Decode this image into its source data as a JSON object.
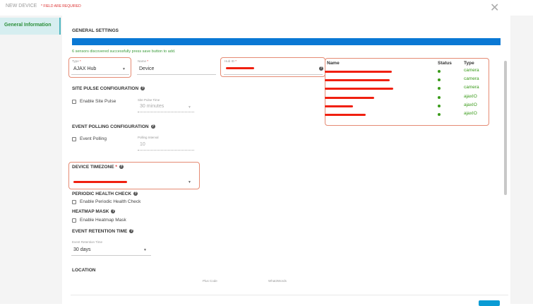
{
  "header": {
    "title": "NEW DEVICE",
    "required_note": "* FIELD ARE REQUIRED",
    "close_icon": "close-icon"
  },
  "sidebar": {
    "items": [
      {
        "label": "General Information",
        "active": true
      }
    ]
  },
  "general": {
    "heading": "GENERAL SETTINGS",
    "progress_percent": 100,
    "progress_color": "#0a78d4",
    "message": "6 sensors discovered successfully press save button to add.",
    "type": {
      "label": "Type",
      "value": "AJAX Hub"
    },
    "name": {
      "label": "Name",
      "value": "Device"
    },
    "hub_id": {
      "label": "Hub ID"
    }
  },
  "sensors": {
    "columns": [
      "Name",
      "Status",
      "Type"
    ],
    "rows": [
      {
        "status": "online",
        "type": "camera"
      },
      {
        "status": "online",
        "type": "camera"
      },
      {
        "status": "online",
        "type": "camera"
      },
      {
        "status": "online",
        "type": "ajaxIO"
      },
      {
        "status": "online",
        "type": "ajaxIO"
      },
      {
        "status": "online",
        "type": "ajaxIO"
      }
    ],
    "status_color": "#3a9b1a"
  },
  "site_pulse": {
    "heading": "SITE PULSE CONFIGURATION",
    "checkbox": "Enable Site Pulse",
    "time_label": "Site Pulse Time",
    "time_value": "30 minutes"
  },
  "event_polling": {
    "heading": "EVENT POLLING CONFIGURATION",
    "checkbox": "Event Polling",
    "interval_label": "Polling Interval",
    "interval_value": "10"
  },
  "timezone": {
    "heading": "DEVICE TIMEZONE"
  },
  "health": {
    "heading": "PERIODIC HEALTH CHECK",
    "checkbox": "Enable Periodic Health Check"
  },
  "heatmap": {
    "heading": "HEATMAP MASK",
    "checkbox": "Enable Heatmap Mask"
  },
  "retention": {
    "heading": "EVENT RETENTION TIME",
    "label": "Event Retention Time",
    "value": "30 days"
  },
  "location": {
    "heading": "LOCATION",
    "plus_code": "Plus Code",
    "what3words": "What3Words"
  }
}
